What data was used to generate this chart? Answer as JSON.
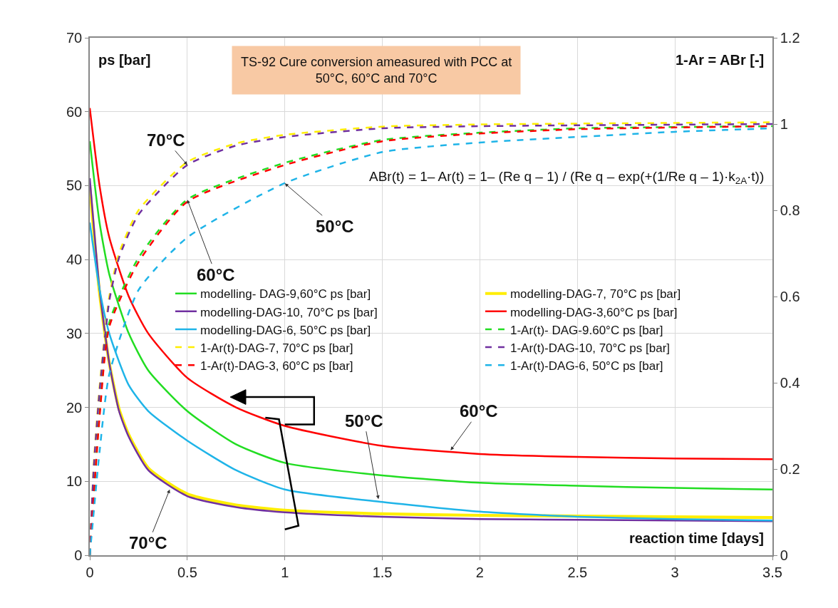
{
  "chart_data": {
    "type": "line",
    "title": "TS-92 Cure conversion ameasured with PCC at 50°C, 60°C and 70°C",
    "xlabel": "reaction time [days]",
    "ylabel": "ps [bar]",
    "y2label": "1-Ar = ABr [-]",
    "xlim": [
      0,
      3.5
    ],
    "xticks": [
      0,
      0.5,
      1,
      1.5,
      2,
      2.5,
      3,
      3.5
    ],
    "ylim": [
      0,
      70
    ],
    "yticks": [
      0,
      10,
      20,
      30,
      40,
      50,
      60,
      70
    ],
    "y2lim": [
      0,
      1.2
    ],
    "y2ticks": [
      0,
      0.2,
      0.4,
      0.6,
      0.8,
      1,
      1.2
    ],
    "grid": true,
    "legend": "center",
    "marker": "none",
    "series": [
      {
        "name": "modelling- DAG-9,60°C ps [bar]",
        "color": "#22dd22",
        "line_style": "solid",
        "x": [
          0,
          0.05,
          0.1,
          0.2,
          0.3,
          0.5,
          0.75,
          1,
          1.5,
          2,
          2.5,
          3,
          3.5
        ],
        "values": [
          56,
          45,
          38,
          30,
          25,
          19.5,
          15,
          12.5,
          10.8,
          9.8,
          9.4,
          9.1,
          8.9
        ]
      },
      {
        "name": "modelling-DAG-7, 70°C ps [bar]",
        "color": "#ffee00",
        "line_style": "solid",
        "x": [
          0,
          0.05,
          0.1,
          0.15,
          0.2,
          0.3,
          0.5,
          0.75,
          1,
          1.5,
          2,
          2.5,
          3,
          3.5
        ],
        "values": [
          50,
          35.5,
          26,
          19.8,
          16.3,
          11.8,
          8.3,
          6.8,
          6.1,
          5.6,
          5.4,
          5.3,
          5.2,
          5.1
        ]
      },
      {
        "name": "modelling-DAG-10, 70°C ps [bar]",
        "color": "#7030a0",
        "line_style": "solid",
        "x": [
          0,
          0.05,
          0.1,
          0.15,
          0.2,
          0.3,
          0.5,
          0.75,
          1,
          1.5,
          2,
          2.5,
          3,
          3.5
        ],
        "values": [
          51,
          36,
          26,
          19.5,
          16,
          11.5,
          8,
          6.5,
          5.8,
          5.2,
          4.9,
          4.8,
          4.7,
          4.6
        ]
      },
      {
        "name": "modelling-DAG-3,60°C ps [bar]",
        "color": "#ff0000",
        "line_style": "solid",
        "x": [
          0,
          0.05,
          0.1,
          0.2,
          0.3,
          0.5,
          0.75,
          1,
          1.5,
          2,
          2.5,
          3,
          3.5
        ],
        "values": [
          60.5,
          50,
          43,
          35,
          30,
          24,
          20,
          17.5,
          14.8,
          13.7,
          13.3,
          13.1,
          13
        ]
      },
      {
        "name": "modelling-DAG-6, 50°C ps [bar]",
        "color": "#1fb4e8",
        "line_style": "solid",
        "x": [
          0,
          0.05,
          0.1,
          0.2,
          0.3,
          0.5,
          0.75,
          1,
          1.5,
          2,
          2.5,
          3,
          3.5
        ],
        "values": [
          45,
          36,
          30,
          23,
          19.5,
          15.5,
          11.5,
          8.9,
          7.2,
          5.9,
          5.2,
          4.9,
          4.7
        ]
      },
      {
        "name": "1-Ar(t)- DAG-9.60°C ps [bar]",
        "color": "#22dd22",
        "line_style": "dashed",
        "axis": "y2",
        "x": [
          0,
          0.05,
          0.1,
          0.25,
          0.5,
          1,
          1.5,
          2,
          2.5,
          3,
          3.5
        ],
        "values": [
          0,
          0.33,
          0.54,
          0.69,
          0.825,
          0.91,
          0.963,
          0.98,
          0.99,
          0.993,
          0.995
        ]
      },
      {
        "name": "1-Ar(t)-DAG-7, 70°C ps [bar]",
        "color": "#ffee00",
        "line_style": "dashed",
        "axis": "y2",
        "x": [
          0,
          0.02,
          0.05,
          0.1,
          0.15,
          0.25,
          0.5,
          0.75,
          1,
          1.5,
          2,
          3.5
        ],
        "values": [
          0,
          0.21,
          0.39,
          0.6,
          0.7,
          0.8,
          0.912,
          0.955,
          0.975,
          0.994,
          0.999,
          1.004
        ]
      },
      {
        "name": "1-Ar(t)-DAG-10, 70°C ps [bar]",
        "color": "#7030a0",
        "line_style": "dashed",
        "axis": "y2",
        "x": [
          0,
          0.02,
          0.05,
          0.1,
          0.15,
          0.25,
          0.5,
          0.75,
          1,
          1.5,
          2,
          3.5
        ],
        "values": [
          0,
          0.2,
          0.38,
          0.59,
          0.69,
          0.79,
          0.905,
          0.95,
          0.97,
          0.99,
          0.995,
          1
        ]
      },
      {
        "name": "1-Ar(t)-DAG-3, 60°C ps [bar]",
        "color": "#ff0000",
        "line_style": "dashed",
        "axis": "y2",
        "x": [
          0,
          0.05,
          0.1,
          0.25,
          0.5,
          1,
          1.5,
          2,
          2.5,
          3,
          3.5
        ],
        "values": [
          0,
          0.32,
          0.53,
          0.68,
          0.82,
          0.905,
          0.96,
          0.978,
          0.988,
          0.992,
          0.995
        ]
      },
      {
        "name": "1-Ar(t)-DAG-6, 50°C ps [bar]",
        "color": "#1fb4e8",
        "line_style": "dashed",
        "axis": "y2",
        "x": [
          0,
          0.05,
          0.1,
          0.25,
          0.5,
          1,
          1.5,
          2,
          2.5,
          3,
          3.5
        ],
        "values": [
          0,
          0.24,
          0.42,
          0.615,
          0.737,
          0.863,
          0.935,
          0.957,
          0.97,
          0.982,
          0.99
        ]
      }
    ],
    "annotations": [
      "ABr(t) = 1– Ar(t) = 1– (Re q – 1) / (Re q – exp(+(1/Re q – 1)·k$_{2A}$·t))",
      {
        "text": "70°C",
        "x": 0.5,
        "y": 52.8
      },
      {
        "text": "60°C",
        "x": 0.5,
        "y": 48.1
      },
      {
        "text": "50°C",
        "x": 1,
        "y": 50.3
      },
      {
        "text": "60°C",
        "x": 1.85,
        "y": 14.2
      },
      {
        "text": "50°C",
        "x": 1.48,
        "y": 7.6
      },
      {
        "text": "70°C",
        "x": 0.41,
        "y": 8.9
      }
    ]
  }
}
